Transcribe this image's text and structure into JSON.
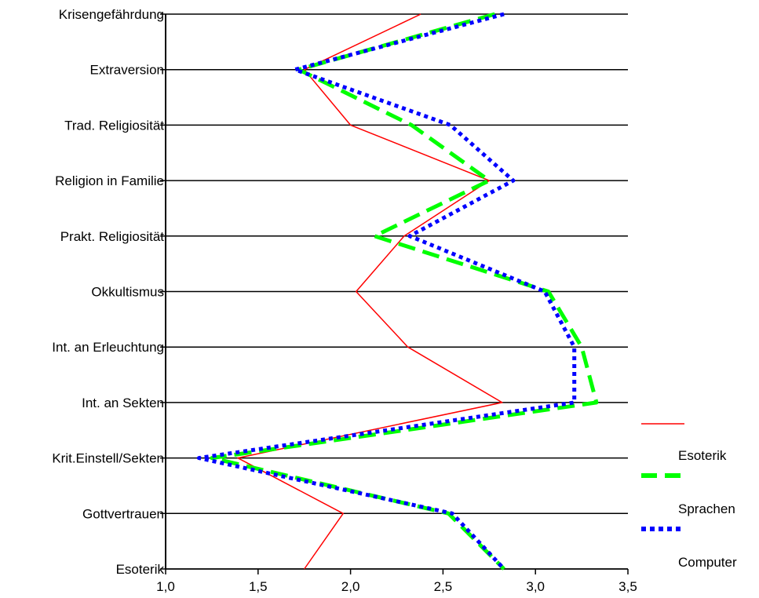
{
  "chart_data": {
    "type": "line",
    "orientation": "horizontal-profile",
    "categories": [
      "Krisengefährdung",
      "Extraversion",
      "Trad. Religiosität",
      "Religion in Familie",
      "Prakt. Religiosität",
      "Okkultismus",
      "Int. an Erleuchtung",
      "Int. an Sekten",
      "Krit.Einstell/Sekten",
      "Gottvertrauen",
      "Esoterik"
    ],
    "xlim": [
      1.0,
      3.5
    ],
    "xticks": [
      "1,0",
      "1,5",
      "2,0",
      "2,5",
      "3,0",
      "3,5"
    ],
    "xtick_values": [
      1.0,
      1.5,
      2.0,
      2.5,
      3.0,
      3.5
    ],
    "grid": "horizontal",
    "legend_position": "right",
    "series": [
      {
        "name": "Esoterik",
        "color": "#ff0000",
        "style": "solid",
        "values": [
          2.38,
          1.75,
          2.0,
          2.75,
          2.29,
          2.03,
          2.31,
          2.82,
          1.39,
          1.96,
          1.75
        ]
      },
      {
        "name": "Sprachen",
        "color": "#00ff00",
        "style": "dashed",
        "values": [
          2.78,
          1.72,
          2.33,
          2.75,
          2.13,
          3.07,
          3.25,
          3.33,
          1.25,
          2.53,
          2.83
        ]
      },
      {
        "name": "Computer",
        "color": "#0000ff",
        "style": "dotted",
        "values": [
          2.83,
          1.7,
          2.54,
          2.88,
          2.32,
          3.05,
          3.21,
          3.21,
          1.18,
          2.55,
          2.83
        ]
      }
    ]
  }
}
